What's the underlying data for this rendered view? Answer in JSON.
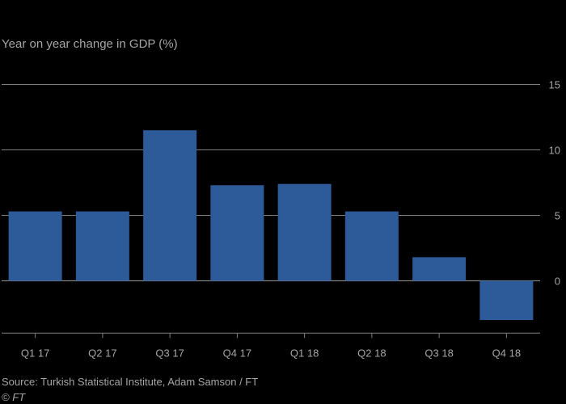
{
  "chart_data": {
    "type": "bar",
    "title": "Year on year change in GDP (%)",
    "categories": [
      "Q1 17",
      "Q2 17",
      "Q3 17",
      "Q4 17",
      "Q1 18",
      "Q2 18",
      "Q3 18",
      "Q4 18"
    ],
    "values": [
      5.3,
      5.3,
      11.5,
      7.3,
      7.4,
      5.3,
      1.8,
      -3.0
    ],
    "xlabel": "",
    "ylabel": "Year on year change in GDP (%)",
    "ylim": [
      -4,
      15
    ],
    "yticks": [
      0,
      5,
      10,
      15
    ],
    "grid": true,
    "bar_color": "#2d5a99",
    "gridline_color": "#7f7f7f"
  },
  "footer": {
    "source": "Source: Turkish Statistical Institute, Adam Samson / FT",
    "credit": "© FT"
  }
}
